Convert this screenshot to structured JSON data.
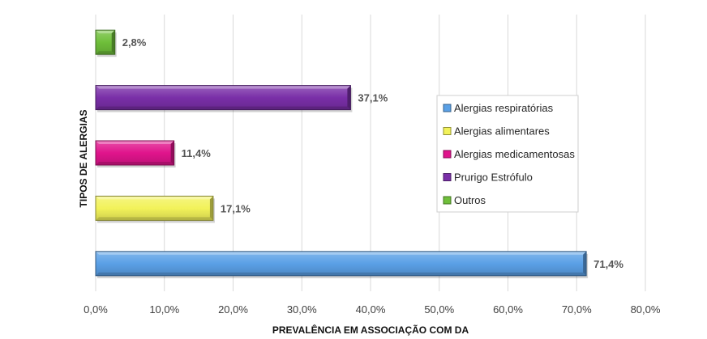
{
  "chart_data": {
    "type": "bar",
    "orientation": "horizontal",
    "title": "",
    "xlabel": "PREVALÊNCIA EM ASSOCIAÇÃO COM DA",
    "ylabel": "TIPOS DE ALERGIAS",
    "xlim": [
      0,
      80
    ],
    "xticks": [
      "0,0%",
      "10,0%",
      "20,0%",
      "30,0%",
      "40,0%",
      "50,0%",
      "60,0%",
      "70,0%",
      "80,0%"
    ],
    "grid": true,
    "legend_position": "right",
    "series": [
      {
        "name": "Alergias respiratórias",
        "value": 71.4,
        "label": "71,4%",
        "color": "#5aa0e6"
      },
      {
        "name": "Alergias alimentares",
        "value": 17.1,
        "label": "17,1%",
        "color": "#f2f25a"
      },
      {
        "name": "Alergias medicamentosas",
        "value": 11.4,
        "label": "11,4%",
        "color": "#e0148c"
      },
      {
        "name": "Prurigo Estrófulo",
        "value": 37.1,
        "label": "37,1%",
        "color": "#7a2fa8"
      },
      {
        "name": "Outros",
        "value": 2.8,
        "label": "2,8%",
        "color": "#6fbf3a"
      }
    ]
  }
}
